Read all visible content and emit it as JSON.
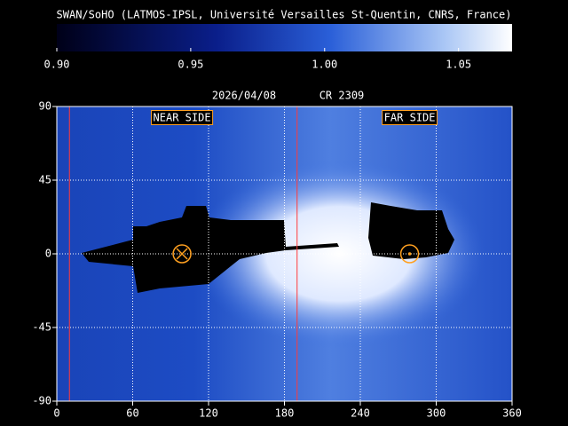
{
  "chart_data": {
    "type": "heatmap",
    "title": "SWAN/SoHO (LATMOS-IPSL, Université Versailles St-Quentin, CNRS, France)",
    "date": "2026/04/08",
    "rotation": "CR 2309",
    "colorbar": {
      "lim": [
        0.9,
        1.07
      ],
      "ticks": [
        {
          "value": 0.9,
          "label": "0.90"
        },
        {
          "value": 0.95,
          "label": "0.95"
        },
        {
          "value": 1.0,
          "label": "1.00"
        },
        {
          "value": 1.05,
          "label": "1.05"
        }
      ]
    },
    "xlim": [
      0,
      360
    ],
    "xticks": [
      0,
      60,
      120,
      180,
      240,
      300,
      360
    ],
    "ylim": [
      -90,
      90
    ],
    "yticks": [
      -90,
      -45,
      0,
      45,
      90
    ],
    "grid": true,
    "near_side_label": "NEAR SIDE",
    "far_side_label": "FAR SIDE",
    "near_side_lon": 99,
    "far_side_lon": 279,
    "marker_lat": 0,
    "vertical_lines": [
      10,
      190
    ],
    "line_color": "#ff3a3a",
    "marker_color": "#ffa020"
  }
}
